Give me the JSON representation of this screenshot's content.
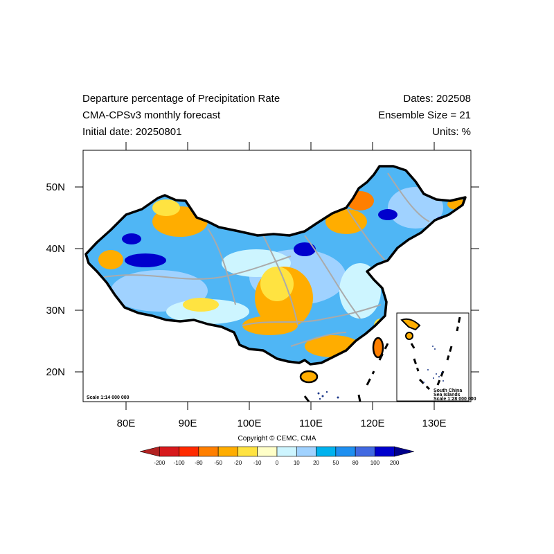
{
  "header": {
    "title": "Departure percentage of Precipitation Rate",
    "model": "CMA-CPSv3 monthly forecast",
    "initial_date": "Initial date: 20250801",
    "dates": "Dates: 202508",
    "ensemble": "Ensemble Size = 21",
    "units": "Units: %"
  },
  "axes": {
    "lat_labels": [
      "50N",
      "40N",
      "30N",
      "20N"
    ],
    "lon_labels": [
      "80E",
      "90E",
      "100E",
      "110E",
      "120E",
      "130E"
    ],
    "lat_values": [
      50,
      40,
      30,
      20
    ],
    "lon_values": [
      80,
      90,
      100,
      110,
      120,
      130
    ],
    "lat_range": [
      15,
      56
    ],
    "lon_range": [
      73,
      135
    ]
  },
  "map": {
    "scale_main": "Scale 1:14 000 000",
    "inset_line1": "South China",
    "inset_line2": "Sea Islands",
    "inset_scale": "Scale 1:28 000 000"
  },
  "colorbar": {
    "labels": [
      "-200",
      "-100",
      "-80",
      "-50",
      "-20",
      "-10",
      "0",
      "10",
      "20",
      "50",
      "80",
      "100",
      "200"
    ],
    "colors": [
      "#b22222",
      "#d7191c",
      "#ff2a00",
      "#ff7f00",
      "#ffad00",
      "#ffe341",
      "#ffffc8",
      "#cdf5ff",
      "#a0d2ff",
      "#00b2ee",
      "#1e8ff0",
      "#4169e1",
      "#0000cd",
      "#00008b"
    ]
  },
  "footer": {
    "copyright": "Copyright © CEMC, CMA"
  }
}
